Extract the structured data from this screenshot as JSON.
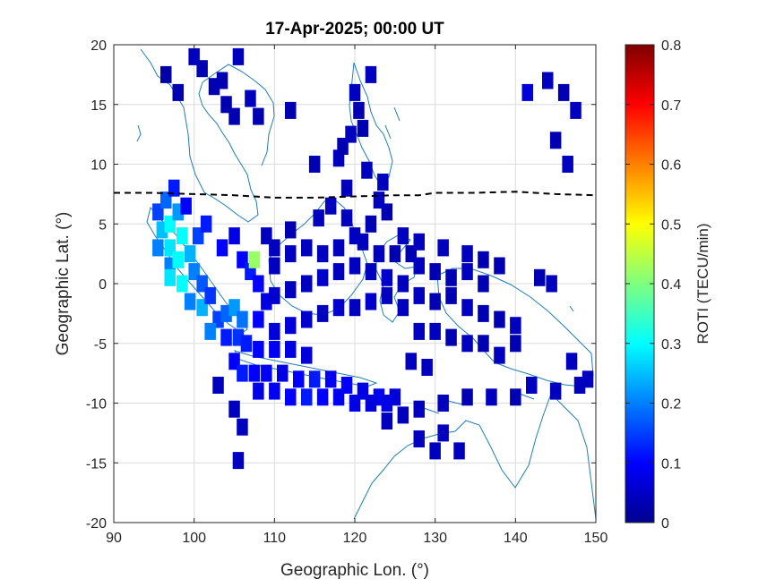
{
  "chart_data": {
    "type": "heatmap",
    "title": "17-Apr-2025; 00:00 UT",
    "xlabel": "Geographic Lon. (°)",
    "ylabel": "Geographic Lat. (°)",
    "xlim": [
      90,
      150
    ],
    "ylim": [
      -20,
      20
    ],
    "xticks": [
      "90",
      "100",
      "110",
      "120",
      "130",
      "140",
      "150"
    ],
    "yticks": [
      "20",
      "15",
      "10",
      "5",
      "0",
      "-5",
      "-10",
      "-15",
      "-20"
    ],
    "grid": true,
    "colorbar": {
      "label": "ROTI (TECU/min)",
      "range": [
        0,
        0.8
      ],
      "ticks": [
        "0.8",
        "0.7",
        "0.6",
        "0.5",
        "0.4",
        "0.3",
        "0.2",
        "0.1",
        "0"
      ],
      "colormap": "jet"
    },
    "magnetic_equator": [
      [
        90,
        7.6
      ],
      [
        95,
        7.6
      ],
      [
        100,
        7.5
      ],
      [
        105,
        7.4
      ],
      [
        110,
        7.2
      ],
      [
        115,
        7.2
      ],
      [
        120,
        7.3
      ],
      [
        125,
        7.4
      ],
      [
        128,
        7.4
      ],
      [
        130,
        7.6
      ],
      [
        135,
        7.6
      ],
      [
        140,
        7.7
      ],
      [
        145,
        7.5
      ],
      [
        150,
        7.4
      ]
    ],
    "cells": [
      [
        95.5,
        6,
        0.15
      ],
      [
        96.5,
        7,
        0.18
      ],
      [
        97.5,
        8,
        0.12
      ],
      [
        96,
        4.5,
        0.25
      ],
      [
        97,
        5,
        0.3
      ],
      [
        98,
        6,
        0.22
      ],
      [
        99,
        6.5,
        0.1
      ],
      [
        95.5,
        3,
        0.2
      ],
      [
        97,
        3,
        0.28
      ],
      [
        98.5,
        4,
        0.3
      ],
      [
        97,
        1.5,
        0.2
      ],
      [
        98,
        2,
        0.3
      ],
      [
        99.5,
        2.5,
        0.24
      ],
      [
        100.5,
        4,
        0.15
      ],
      [
        101.5,
        5,
        0.12
      ],
      [
        97,
        0.5,
        0.28
      ],
      [
        98.5,
        0,
        0.3
      ],
      [
        100,
        1,
        0.2
      ],
      [
        101,
        0,
        0.17
      ],
      [
        99.5,
        -1.5,
        0.2
      ],
      [
        101,
        -2,
        0.24
      ],
      [
        102,
        -1,
        0.14
      ],
      [
        103,
        -3,
        0.15
      ],
      [
        102,
        -4,
        0.2
      ],
      [
        104,
        -2.5,
        0.18
      ],
      [
        105,
        -2,
        0.22
      ],
      [
        106,
        -3,
        0.19
      ],
      [
        104,
        -4.5,
        0.12
      ],
      [
        105.5,
        -4.5,
        0.14
      ],
      [
        103.5,
        3,
        0.1
      ],
      [
        105,
        4,
        0.08
      ],
      [
        106,
        2,
        0.1
      ],
      [
        107,
        1,
        0.12
      ],
      [
        107.5,
        2,
        0.42
      ],
      [
        108,
        0,
        0.1
      ],
      [
        109,
        -1.5,
        0.08
      ],
      [
        108,
        -3,
        0.1
      ],
      [
        106.5,
        -5,
        0.12
      ],
      [
        108,
        -5.5,
        0.1
      ],
      [
        110,
        -5.5,
        0.09
      ],
      [
        112,
        -5.5,
        0.08
      ],
      [
        114,
        -6,
        0.07
      ],
      [
        105,
        -6.5,
        0.1
      ],
      [
        106,
        -7.5,
        0.12
      ],
      [
        107.5,
        -7.5,
        0.1
      ],
      [
        109,
        -7.5,
        0.09
      ],
      [
        111,
        -7.5,
        0.08
      ],
      [
        113,
        -8,
        0.1
      ],
      [
        115,
        -8,
        0.12
      ],
      [
        117,
        -8,
        0.09
      ],
      [
        119,
        -8.5,
        0.1
      ],
      [
        121,
        -9,
        0.08
      ],
      [
        123,
        -9.5,
        0.09
      ],
      [
        125,
        -9.5,
        0.07
      ],
      [
        108,
        -9,
        0.08
      ],
      [
        110,
        -9,
        0.09
      ],
      [
        112,
        -9.5,
        0.1
      ],
      [
        114,
        -9.5,
        0.12
      ],
      [
        116,
        -9.5,
        0.1
      ],
      [
        118,
        -9.5,
        0.09
      ],
      [
        120,
        -10,
        0.08
      ],
      [
        122,
        -10,
        0.07
      ],
      [
        124,
        -10,
        0.08
      ],
      [
        110,
        -4,
        0.07
      ],
      [
        112,
        -3.5,
        0.07
      ],
      [
        114,
        -3,
        0.06
      ],
      [
        116,
        -2.5,
        0.05
      ],
      [
        118,
        -2,
        0.06
      ],
      [
        120,
        -2,
        0.05
      ],
      [
        122,
        -1.5,
        0.06
      ],
      [
        124,
        -1,
        0.05
      ],
      [
        110,
        -1,
        0.06
      ],
      [
        112,
        -0.5,
        0.05
      ],
      [
        114,
        0,
        0.05
      ],
      [
        116,
        0.5,
        0.06
      ],
      [
        118,
        1,
        0.05
      ],
      [
        120,
        1.5,
        0.05
      ],
      [
        122,
        1,
        0.05
      ],
      [
        124,
        0.5,
        0.06
      ],
      [
        126,
        0,
        0.05
      ],
      [
        110,
        1.5,
        0.05
      ],
      [
        112,
        2.5,
        0.05
      ],
      [
        114,
        3,
        0.05
      ],
      [
        116,
        2.5,
        0.05
      ],
      [
        118,
        3,
        0.05
      ],
      [
        120,
        4,
        0.05
      ],
      [
        122,
        5,
        0.04
      ],
      [
        124,
        6,
        0.04
      ],
      [
        126,
        4,
        0.05
      ],
      [
        115.5,
        5.5,
        0.05
      ],
      [
        117,
        6.5,
        0.05
      ],
      [
        119,
        5.5,
        0.05
      ],
      [
        121,
        3.5,
        0.05
      ],
      [
        123,
        2.5,
        0.05
      ],
      [
        125,
        2.5,
        0.04
      ],
      [
        127,
        2.5,
        0.04
      ],
      [
        126,
        -2,
        0.05
      ],
      [
        128,
        -1,
        0.05
      ],
      [
        130,
        -1.5,
        0.04
      ],
      [
        132,
        -1,
        0.04
      ],
      [
        134,
        -2,
        0.05
      ],
      [
        136,
        -2.5,
        0.04
      ],
      [
        138,
        -3,
        0.04
      ],
      [
        140,
        -3.5,
        0.05
      ],
      [
        128,
        -4,
        0.05
      ],
      [
        130,
        -4,
        0.05
      ],
      [
        132,
        -4.5,
        0.04
      ],
      [
        134,
        -5,
        0.05
      ],
      [
        136,
        -5,
        0.04
      ],
      [
        138,
        -6,
        0.05
      ],
      [
        140,
        -5,
        0.04
      ],
      [
        128,
        1.5,
        0.05
      ],
      [
        130,
        1,
        0.04
      ],
      [
        132,
        0.5,
        0.04
      ],
      [
        134,
        1,
        0.05
      ],
      [
        136,
        0,
        0.04
      ],
      [
        127,
        -6.5,
        0.05
      ],
      [
        129,
        -7,
        0.05
      ],
      [
        96.5,
        17.5,
        0.03
      ],
      [
        98,
        16,
        0.04
      ],
      [
        100,
        19,
        0.05
      ],
      [
        101,
        18,
        0.04
      ],
      [
        102.5,
        16.5,
        0.04
      ],
      [
        103.5,
        17,
        0.04
      ],
      [
        104,
        15,
        0.04
      ],
      [
        105.5,
        19,
        0.05
      ],
      [
        105,
        14,
        0.04
      ],
      [
        107,
        15.5,
        0.05
      ],
      [
        108,
        14,
        0.04
      ],
      [
        112,
        14.5,
        0.04
      ],
      [
        115,
        10,
        0.04
      ],
      [
        118,
        10.5,
        0.05
      ],
      [
        118.5,
        11.5,
        0.04
      ],
      [
        119.5,
        12.5,
        0.05
      ],
      [
        119,
        8,
        0.05
      ],
      [
        120,
        16,
        0.05
      ],
      [
        120.5,
        14.5,
        0.04
      ],
      [
        121,
        13,
        0.04
      ],
      [
        122,
        17.5,
        0.05
      ],
      [
        121.5,
        9.5,
        0.05
      ],
      [
        123,
        7,
        0.05
      ],
      [
        123.5,
        8.5,
        0.05
      ],
      [
        141.5,
        16,
        0.07
      ],
      [
        144,
        17,
        0.05
      ],
      [
        145,
        12,
        0.04
      ],
      [
        146,
        16,
        0.04
      ],
      [
        147.5,
        14.5,
        0.05
      ],
      [
        146.5,
        10,
        0.05
      ],
      [
        143,
        0.5,
        0.04
      ],
      [
        144.5,
        0,
        0.05
      ],
      [
        147,
        -6.5,
        0.05
      ],
      [
        148,
        -8.5,
        0.05
      ],
      [
        149,
        -8,
        0.05
      ],
      [
        145,
        -9,
        0.05
      ],
      [
        142,
        -8.5,
        0.05
      ],
      [
        140,
        -9.5,
        0.04
      ],
      [
        137,
        -9.5,
        0.05
      ],
      [
        134,
        -9.5,
        0.04
      ],
      [
        131,
        -10,
        0.05
      ],
      [
        128,
        -10.5,
        0.05
      ],
      [
        126,
        -11,
        0.05
      ],
      [
        124,
        -11.5,
        0.05
      ],
      [
        128,
        -13,
        0.05
      ],
      [
        131,
        -12.5,
        0.05
      ],
      [
        130,
        -14,
        0.05
      ],
      [
        133,
        -14,
        0.05
      ],
      [
        103,
        -8.5,
        0.05
      ],
      [
        105,
        -10.5,
        0.05
      ],
      [
        106,
        -12,
        0.05
      ],
      [
        105.5,
        -14.8,
        0.05
      ],
      [
        110,
        3,
        0.05
      ],
      [
        109,
        4,
        0.05
      ],
      [
        112,
        4.5,
        0.04
      ],
      [
        128,
        3.5,
        0.05
      ],
      [
        131,
        3,
        0.05
      ],
      [
        134,
        2.5,
        0.05
      ],
      [
        136,
        2,
        0.04
      ],
      [
        138,
        1.5,
        0.04
      ]
    ]
  }
}
